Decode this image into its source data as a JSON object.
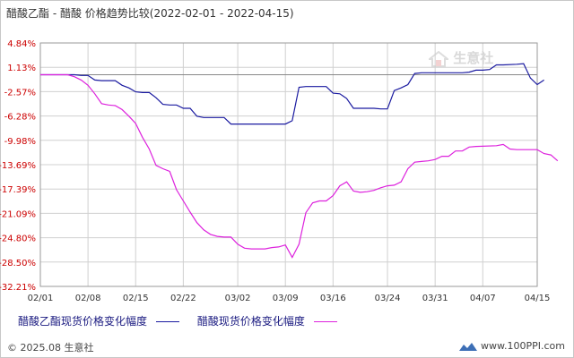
{
  "title": "醋酸乙酯 - 醋酸 价格趋势比较(2022-02-01 - 2022-04-15)",
  "watermark_text": "生意社",
  "footer": {
    "copyright": "© 2025.08 生意社",
    "site": "www.100PPI.com"
  },
  "colors": {
    "series1": "#1a1aa0",
    "series2": "#dd22dd",
    "grid": "#d0d0d0",
    "ytick": "#cc0000"
  },
  "chart_data": {
    "type": "line",
    "title": "醋酸乙酯 - 醋酸 价格趋势比较(2022-02-01 - 2022-04-15)",
    "ylim": [
      -32.21,
      4.84
    ],
    "y_ticks": [
      "4.84%",
      "1.13%",
      "-2.57%",
      "-6.28%",
      "-9.98%",
      "-13.69%",
      "-17.39%",
      "-21.09%",
      "-24.80%",
      "-28.50%",
      "-32.21%"
    ],
    "y_tick_values": [
      4.84,
      1.13,
      -2.57,
      -6.28,
      -9.98,
      -13.69,
      -17.39,
      -21.09,
      -24.8,
      -28.5,
      -32.21
    ],
    "x_ticks": [
      "02/01",
      "02/08",
      "02/15",
      "02/22",
      "03/02",
      "03/09",
      "03/16",
      "03/24",
      "03/31",
      "04/07",
      "04/15"
    ],
    "x_tick_days": [
      0,
      7,
      14,
      21,
      29,
      36,
      43,
      51,
      58,
      65,
      73
    ],
    "grid": true,
    "legend_position": "bottom",
    "series": [
      {
        "name": "醋酸乙酯现货价格变化幅度",
        "color": "#1a1aa0",
        "points": [
          [
            0,
            0
          ],
          [
            5,
            0
          ],
          [
            6,
            -0.1
          ],
          [
            7,
            -0.1
          ],
          [
            8,
            -0.8
          ],
          [
            9,
            -0.9
          ],
          [
            11,
            -0.9
          ],
          [
            12,
            -1.6
          ],
          [
            13,
            -2.0
          ],
          [
            14,
            -2.6
          ],
          [
            15,
            -2.7
          ],
          [
            16,
            -2.7
          ],
          [
            17,
            -3.5
          ],
          [
            18,
            -4.5
          ],
          [
            19,
            -4.6
          ],
          [
            20,
            -4.6
          ],
          [
            21,
            -5.1
          ],
          [
            22,
            -5.1
          ],
          [
            23,
            -6.3
          ],
          [
            24,
            -6.5
          ],
          [
            27,
            -6.5
          ],
          [
            28,
            -7.5
          ],
          [
            29,
            -7.5
          ],
          [
            36,
            -7.5
          ],
          [
            37,
            -7.0
          ],
          [
            38,
            -1.9
          ],
          [
            39,
            -1.8
          ],
          [
            42,
            -1.8
          ],
          [
            43,
            -2.8
          ],
          [
            44,
            -2.9
          ],
          [
            45,
            -3.6
          ],
          [
            46,
            -5.1
          ],
          [
            47,
            -5.1
          ],
          [
            49,
            -5.1
          ],
          [
            50,
            -5.2
          ],
          [
            51,
            -5.2
          ],
          [
            52,
            -2.4
          ],
          [
            53,
            -2.0
          ],
          [
            54,
            -1.5
          ],
          [
            55,
            0.2
          ],
          [
            56,
            0.3
          ],
          [
            62,
            0.3
          ],
          [
            63,
            0.4
          ],
          [
            64,
            0.7
          ],
          [
            65,
            0.7
          ],
          [
            66,
            0.8
          ],
          [
            67,
            1.5
          ],
          [
            68,
            1.5
          ],
          [
            70,
            1.6
          ],
          [
            71,
            1.7
          ],
          [
            72,
            -0.5
          ],
          [
            73,
            -1.5
          ],
          [
            74,
            -0.8
          ]
        ]
      },
      {
        "name": "醋酸现货价格变化幅度",
        "color": "#dd22dd",
        "points": [
          [
            0,
            0
          ],
          [
            4,
            0
          ],
          [
            5,
            -0.3
          ],
          [
            6,
            -0.8
          ],
          [
            7,
            -1.6
          ],
          [
            8,
            -2.9
          ],
          [
            9,
            -4.4
          ],
          [
            10,
            -4.6
          ],
          [
            11,
            -4.7
          ],
          [
            12,
            -5.3
          ],
          [
            13,
            -6.3
          ],
          [
            14,
            -7.4
          ],
          [
            15,
            -9.5
          ],
          [
            16,
            -11.3
          ],
          [
            17,
            -13.8
          ],
          [
            18,
            -14.3
          ],
          [
            19,
            -14.7
          ],
          [
            20,
            -17.5
          ],
          [
            21,
            -19.2
          ],
          [
            22,
            -20.9
          ],
          [
            23,
            -22.5
          ],
          [
            24,
            -23.6
          ],
          [
            25,
            -24.3
          ],
          [
            26,
            -24.6
          ],
          [
            27,
            -24.7
          ],
          [
            28,
            -24.7
          ],
          [
            29,
            -25.8
          ],
          [
            30,
            -26.4
          ],
          [
            31,
            -26.5
          ],
          [
            33,
            -26.5
          ],
          [
            34,
            -26.3
          ],
          [
            35,
            -26.2
          ],
          [
            36,
            -25.9
          ],
          [
            37,
            -27.8
          ],
          [
            38,
            -25.8
          ],
          [
            39,
            -21.0
          ],
          [
            40,
            -19.5
          ],
          [
            41,
            -19.2
          ],
          [
            42,
            -19.2
          ],
          [
            43,
            -18.4
          ],
          [
            44,
            -16.9
          ],
          [
            45,
            -16.3
          ],
          [
            46,
            -17.7
          ],
          [
            47,
            -17.9
          ],
          [
            48,
            -17.8
          ],
          [
            49,
            -17.6
          ],
          [
            50,
            -17.2
          ],
          [
            51,
            -16.9
          ],
          [
            52,
            -16.8
          ],
          [
            53,
            -16.3
          ],
          [
            54,
            -14.3
          ],
          [
            55,
            -13.3
          ],
          [
            56,
            -13.2
          ],
          [
            57,
            -13.1
          ],
          [
            58,
            -12.9
          ],
          [
            59,
            -12.4
          ],
          [
            60,
            -12.4
          ],
          [
            61,
            -11.6
          ],
          [
            62,
            -11.6
          ],
          [
            63,
            -11.0
          ],
          [
            64,
            -10.9
          ],
          [
            67,
            -10.8
          ],
          [
            68,
            -10.6
          ],
          [
            69,
            -11.3
          ],
          [
            70,
            -11.4
          ],
          [
            72,
            -11.4
          ],
          [
            73,
            -11.4
          ],
          [
            74,
            -12.0
          ],
          [
            75,
            -12.2
          ],
          [
            76,
            -13.1
          ]
        ]
      }
    ]
  }
}
